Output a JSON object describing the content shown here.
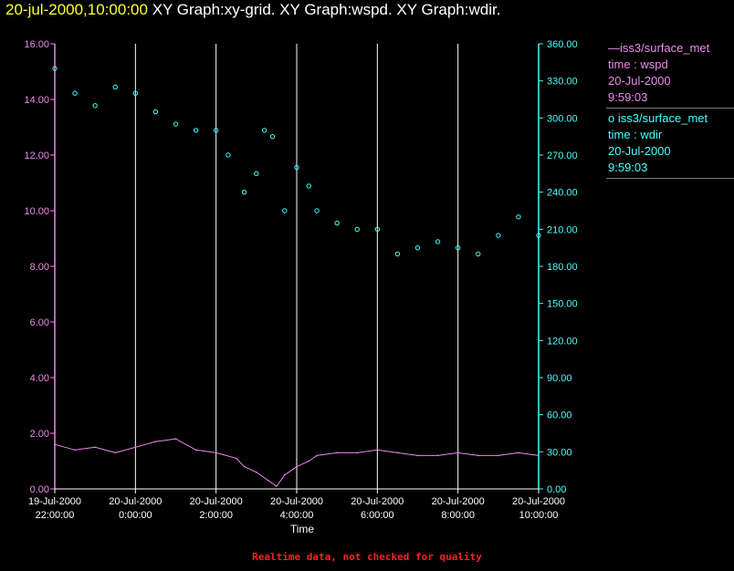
{
  "header": {
    "timestamp": "20-jul-2000,10:00:00",
    "graphs": "XY Graph:xy-grid.  XY Graph:wspd.  XY Graph:wdir."
  },
  "legend": {
    "wspd": {
      "symbol": "—",
      "source": "iss3/surface_met",
      "field": "time : wspd",
      "date": "20-Jul-2000",
      "time": "9:59:03"
    },
    "wdir": {
      "symbol": "o",
      "source": "iss3/surface_met",
      "field": "time : wdir",
      "date": "20-Jul-2000",
      "time": "9:59:03"
    }
  },
  "footer": "Realtime data, not checked for quality",
  "colors": {
    "wspd": "#ee88ee",
    "wdir": "#44ffff",
    "grid": "#ffffff",
    "stamp": "#ffff33",
    "footer": "#ff2020"
  },
  "chart_data": {
    "type": "line",
    "xlabel": "Time",
    "x_ticks": [
      {
        "date": "19-Jul-2000",
        "time": "22:00:00",
        "hours": 0
      },
      {
        "date": "20-Jul-2000",
        "time": "0:00:00",
        "hours": 2
      },
      {
        "date": "20-Jul-2000",
        "time": "2:00:00",
        "hours": 4
      },
      {
        "date": "20-Jul-2000",
        "time": "4:00:00",
        "hours": 6
      },
      {
        "date": "20-Jul-2000",
        "time": "6:00:00",
        "hours": 8
      },
      {
        "date": "20-Jul-2000",
        "time": "8:00:00",
        "hours": 10
      },
      {
        "date": "20-Jul-2000",
        "time": "10:00:00",
        "hours": 12
      }
    ],
    "xlim_hours": [
      0,
      12
    ],
    "left_axis": {
      "series": "wspd",
      "range": [
        0,
        16
      ],
      "ticks": [
        "0.00",
        "2.00",
        "4.00",
        "6.00",
        "8.00",
        "10.00",
        "12.00",
        "14.00",
        "16.00"
      ]
    },
    "right_axis": {
      "series": "wdir",
      "range": [
        0,
        360
      ],
      "ticks": [
        "0.00",
        "30.00",
        "60.00",
        "90.00",
        "120.00",
        "150.00",
        "180.00",
        "210.00",
        "240.00",
        "270.00",
        "300.00",
        "330.00",
        "360.00"
      ]
    },
    "grid": "vertical lines at each x tick",
    "legend_position": "right",
    "series": [
      {
        "key": "wspd",
        "axis": "left",
        "style": "line",
        "points": [
          [
            0,
            1.6
          ],
          [
            0.5,
            1.4
          ],
          [
            1,
            1.5
          ],
          [
            1.5,
            1.3
          ],
          [
            2,
            1.5
          ],
          [
            2.5,
            1.7
          ],
          [
            3,
            1.8
          ],
          [
            3.5,
            1.4
          ],
          [
            4,
            1.3
          ],
          [
            4.5,
            1.1
          ],
          [
            4.7,
            0.8
          ],
          [
            5,
            0.6
          ],
          [
            5.3,
            0.3
          ],
          [
            5.5,
            0.1
          ],
          [
            5.7,
            0.5
          ],
          [
            6,
            0.8
          ],
          [
            6.3,
            1.0
          ],
          [
            6.5,
            1.2
          ],
          [
            7,
            1.3
          ],
          [
            7.5,
            1.3
          ],
          [
            8,
            1.4
          ],
          [
            8.5,
            1.3
          ],
          [
            9,
            1.2
          ],
          [
            9.5,
            1.2
          ],
          [
            10,
            1.3
          ],
          [
            10.5,
            1.2
          ],
          [
            11,
            1.2
          ],
          [
            11.5,
            1.3
          ],
          [
            12,
            1.2
          ]
        ]
      },
      {
        "key": "wdir",
        "axis": "right",
        "style": "circles",
        "points": [
          [
            0,
            340
          ],
          [
            0.5,
            320
          ],
          [
            1,
            310
          ],
          [
            1.5,
            325
          ],
          [
            2,
            320
          ],
          [
            2.5,
            305
          ],
          [
            3,
            295
          ],
          [
            3.5,
            290
          ],
          [
            4,
            290
          ],
          [
            4.3,
            270
          ],
          [
            4.7,
            240
          ],
          [
            5,
            255
          ],
          [
            5.2,
            290
          ],
          [
            5.4,
            285
          ],
          [
            5.7,
            225
          ],
          [
            6,
            260
          ],
          [
            6.3,
            245
          ],
          [
            6.5,
            225
          ],
          [
            7,
            215
          ],
          [
            7.5,
            210
          ],
          [
            8,
            210
          ],
          [
            8.5,
            190
          ],
          [
            9,
            195
          ],
          [
            9.5,
            200
          ],
          [
            10,
            195
          ],
          [
            10.5,
            190
          ],
          [
            11,
            205
          ],
          [
            11.5,
            220
          ],
          [
            12,
            205
          ]
        ]
      }
    ]
  }
}
